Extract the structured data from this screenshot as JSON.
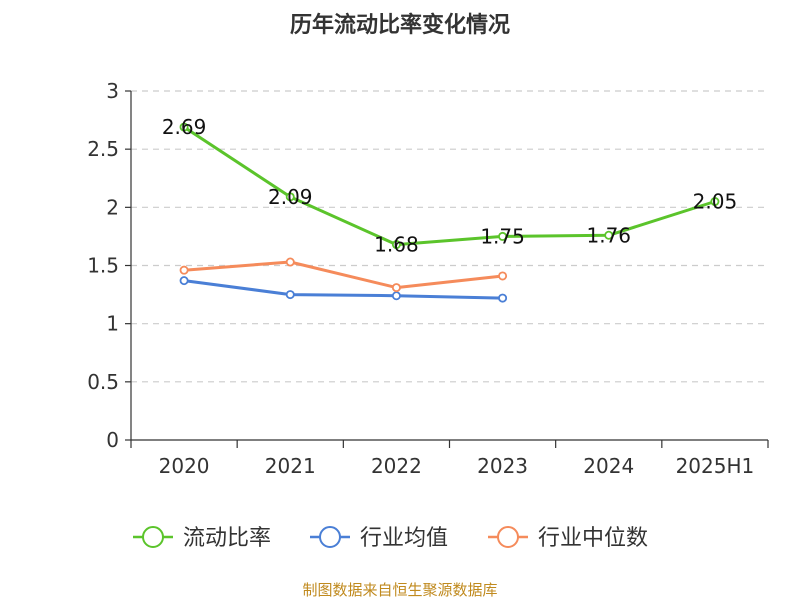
{
  "chart_data": {
    "type": "line",
    "title": "历年流动比率变化情况",
    "xlabel": "",
    "ylabel": "",
    "categories": [
      "2020",
      "2021",
      "2022",
      "2023",
      "2024",
      "2025H1"
    ],
    "ylim": [
      0,
      3
    ],
    "yticks": [
      "0",
      "0.5",
      "1",
      "1.5",
      "2",
      "2.5",
      "3"
    ],
    "ytick_values": [
      0,
      0.5,
      1,
      1.5,
      2,
      2.5,
      3
    ],
    "grid": true,
    "legend_position": "bottom",
    "series": [
      {
        "name": "流动比率",
        "color": "#5bc42b",
        "values": [
          2.69,
          2.09,
          1.68,
          1.75,
          1.76,
          2.05
        ],
        "labels": [
          "2.69",
          "2.09",
          "1.68",
          "1.75",
          "1.76",
          "2.05"
        ],
        "show_labels": true
      },
      {
        "name": "行业均值",
        "color": "#4a7fd6",
        "values": [
          1.37,
          1.25,
          1.24,
          1.22,
          null,
          null
        ],
        "show_labels": false
      },
      {
        "name": "行业中位数",
        "color": "#f58b5b",
        "values": [
          1.46,
          1.53,
          1.31,
          1.41,
          null,
          null
        ],
        "show_labels": false
      }
    ]
  },
  "source": {
    "text": "制图数据来自恒生聚源数据库",
    "color": "#c08a1e"
  }
}
